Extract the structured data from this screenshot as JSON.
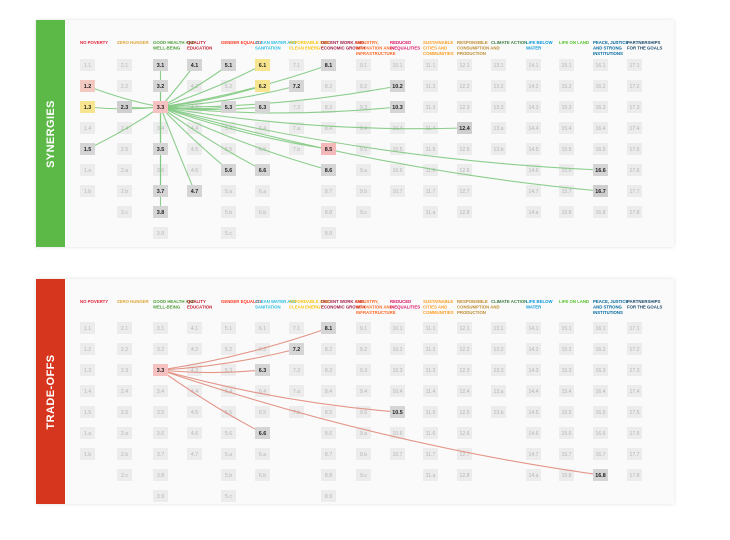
{
  "panels": [
    {
      "id": "synergies",
      "label": "SYNERGIES",
      "color": "#5cb947",
      "line_color": "#7fc97f",
      "source": "3.3"
    },
    {
      "id": "tradeoffs",
      "label": "TRADE-OFFS",
      "color": "#d7361e",
      "line_color": "#e08a7a",
      "source": "3.3"
    }
  ],
  "goals": [
    {
      "title": "NO POVERTY",
      "color": "#e5243b",
      "targets": [
        "1.1",
        "1.2",
        "1.3",
        "1.4",
        "1.5",
        "1.a",
        "1.b"
      ]
    },
    {
      "title": "ZERO HUNGER",
      "color": "#dda63a",
      "targets": [
        "2.1",
        "2.2",
        "2.3",
        "2.4",
        "2.5",
        "2.a",
        "2.b",
        "2.c"
      ]
    },
    {
      "title": "GOOD HEALTH AND WELL-BEING",
      "color": "#4c9f38",
      "targets": [
        "3.1",
        "3.2",
        "3.3",
        "3.4",
        "3.5",
        "3.6",
        "3.7",
        "3.8",
        "3.9"
      ]
    },
    {
      "title": "QUALITY EDUCATION",
      "color": "#c5192d",
      "targets": [
        "4.1",
        "4.2",
        "4.3",
        "4.4",
        "4.5",
        "4.6",
        "4.7"
      ]
    },
    {
      "title": "GENDER EQUALITY",
      "color": "#ff3a21",
      "targets": [
        "5.1",
        "5.2",
        "5.3",
        "5.4",
        "5.5",
        "5.6",
        "5.a",
        "5.b",
        "5.c"
      ]
    },
    {
      "title": "CLEAN WATER AND SANITATION",
      "color": "#26bde2",
      "targets": [
        "6.1",
        "6.2",
        "6.3",
        "6.4",
        "6.5",
        "6.6",
        "6.a",
        "6.b"
      ]
    },
    {
      "title": "AFFORDABLE AND CLEAN ENERGY",
      "color": "#fcc30b",
      "targets": [
        "7.1",
        "7.2",
        "7.3",
        "7.a",
        "7.b"
      ]
    },
    {
      "title": "DECENT WORK AND ECONOMIC GROWTH",
      "color": "#a21942",
      "targets": [
        "8.1",
        "8.2",
        "8.3",
        "8.4",
        "8.5",
        "8.6",
        "8.7",
        "8.8",
        "8.9",
        "8.10"
      ]
    },
    {
      "title": "INDUSTRY, INNOVATION AND INFRASTRUCTURE",
      "color": "#fd6925",
      "targets": [
        "9.1",
        "9.2",
        "9.3",
        "9.4",
        "9.5",
        "9.a",
        "9.b",
        "9.c"
      ]
    },
    {
      "title": "REDUCED INEQUALITIES",
      "color": "#dd1367",
      "targets": [
        "10.1",
        "10.2",
        "10.3",
        "10.4",
        "10.5",
        "10.6",
        "10.7"
      ]
    },
    {
      "title": "SUSTAINABLE CITIES AND COMMUNITIES",
      "color": "#fd9d24",
      "targets": [
        "11.1",
        "11.2",
        "11.3",
        "11.4",
        "11.5",
        "11.6",
        "11.7",
        "11.a"
      ]
    },
    {
      "title": "RESPONSIBLE CONSUMPTION AND PRODUCTION",
      "color": "#bf8b2e",
      "targets": [
        "12.1",
        "12.2",
        "12.3",
        "12.4",
        "12.5",
        "12.6",
        "12.7",
        "12.8"
      ]
    },
    {
      "title": "CLIMATE ACTION",
      "color": "#3f7e44",
      "targets": [
        "13.1",
        "13.2",
        "13.3",
        "13.a",
        "13.b"
      ]
    },
    {
      "title": "LIFE BELOW WATER",
      "color": "#0a97d9",
      "targets": [
        "14.1",
        "14.2",
        "14.3",
        "14.4",
        "14.5",
        "14.6",
        "14.7",
        "14.a"
      ]
    },
    {
      "title": "LIFE ON LAND",
      "color": "#56c02b",
      "targets": [
        "15.1",
        "15.2",
        "15.3",
        "15.4",
        "15.5",
        "15.6",
        "15.7",
        "15.8"
      ]
    },
    {
      "title": "PEACE, JUSTICE AND STRONG INSTITUTIONS",
      "color": "#00689d",
      "targets": [
        "16.1",
        "16.2",
        "16.3",
        "16.4",
        "16.5",
        "16.6",
        "16.7",
        "16.8"
      ]
    },
    {
      "title": "PARTNERSHIPS FOR THE GOALS",
      "color": "#19486a",
      "targets": [
        "17.1",
        "17.2",
        "17.3",
        "17.4",
        "17.5",
        "17.6",
        "17.7",
        "17.8"
      ]
    }
  ],
  "highlights": {
    "synergies": {
      "1.2": "#f3c8c0",
      "1.3": "#f7e48f",
      "1.5": "#d5d5d5",
      "2.3": "#cfcfcf",
      "3.1": "#d5d5d5",
      "3.2": "#d5d5d5",
      "3.3": "#f6c1c1",
      "3.5": "#d5d5d5",
      "3.7": "#d5d5d5",
      "3.8": "#d5d5d5",
      "4.1": "#d5d5d5",
      "4.7": "#d5d5d5",
      "5.1": "#d5d5d5",
      "5.3": "#d5d5d5",
      "5.6": "#d5d5d5",
      "6.1": "#f7e48f",
      "6.2": "#f7e48f",
      "6.3": "#d5d5d5",
      "6.6": "#d5d5d5",
      "7.2": "#d5d5d5",
      "8.1": "#d5d5d5",
      "8.5": "#f3b8b8",
      "8.6": "#d5d5d5",
      "10.2": "#d5d5d5",
      "10.3": "#d5d5d5",
      "12.4": "#cfcfcf",
      "16.6": "#d5d5d5",
      "16.7": "#cfcfcf"
    },
    "tradeoffs": {
      "3.3": "#f6c1c1",
      "6.3": "#d5d5d5",
      "6.6": "#d5d5d5",
      "7.2": "#d5d5d5",
      "8.1": "#d5d5d5",
      "10.5": "#d5d5d5",
      "16.8": "#d5d5d5"
    }
  },
  "links": {
    "synergies": [
      "1.2",
      "1.3",
      "1.5",
      "2.3",
      "3.1",
      "3.2",
      "3.5",
      "3.7",
      "3.8",
      "4.1",
      "4.7",
      "5.1",
      "5.3",
      "5.6",
      "6.1",
      "6.2",
      "6.3",
      "6.6",
      "7.2",
      "8.1",
      "8.5",
      "8.6",
      "10.2",
      "10.3",
      "12.4",
      "16.6",
      "16.7"
    ],
    "tradeoffs": [
      "6.3",
      "6.6",
      "7.2",
      "8.1",
      "10.5",
      "16.8"
    ]
  },
  "colors": {
    "tile_default": "#ececec",
    "text_default": "#b5b5b5",
    "text_strong": "#222222"
  }
}
